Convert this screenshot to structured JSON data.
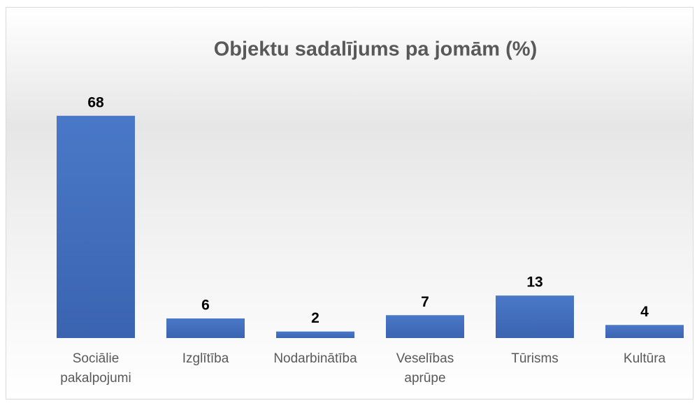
{
  "chart_data": {
    "type": "bar",
    "title": "Objektu sadalījums pa jomām (%)",
    "categories": [
      "Sociālie pakalpojumi",
      "Izglītība",
      "Nodarbinātība",
      "Veselības aprūpe",
      "Tūrisms",
      "Kultūra"
    ],
    "values": [
      68,
      6,
      2,
      7,
      13,
      4
    ],
    "color": "#4472c4"
  }
}
